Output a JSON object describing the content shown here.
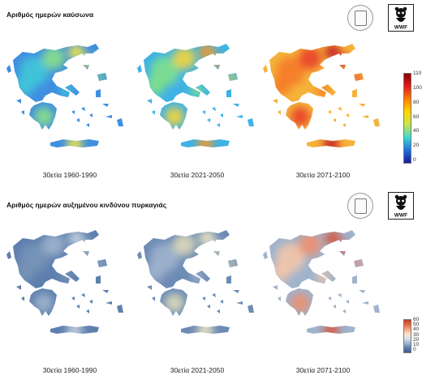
{
  "panels": [
    {
      "id": "heatwave",
      "title": "Αριθμός ημερών καύσωνα",
      "periods": [
        "30ετία 1960-1990",
        "30ετία 2021-2050",
        "30ετία 2071-2100"
      ],
      "colorbar": {
        "ticks": [
          "110",
          "100",
          "80",
          "60",
          "40",
          "20",
          "0"
        ],
        "colors": [
          "#8b0000",
          "#e31a1c",
          "#ff7f00",
          "#ffd700",
          "#c8e64b",
          "#3fd9d0",
          "#1f6fe0",
          "#1a1aa0"
        ]
      },
      "map_palettes": [
        [
          "#3f8fe0",
          "#41c8d8",
          "#8be089",
          "#f2e64a"
        ],
        [
          "#3fb2e6",
          "#7fe08a",
          "#f5d43a",
          "#f59a2a"
        ],
        [
          "#f5b33a",
          "#f57a2a",
          "#e8402a",
          "#c8202a"
        ]
      ]
    },
    {
      "id": "fire",
      "title": "Αριθμός ημερών αυξημένου κινδύνου πυρκαγιάς",
      "periods": [
        "30ετία 1960-1990",
        "30ετία 2021-2050",
        "30ετία 2071-2100"
      ],
      "colorbar": {
        "ticks": [
          "60",
          "50",
          "40",
          "30",
          "20",
          "10",
          "0"
        ],
        "colors": [
          "#c0392b",
          "#e7693f",
          "#f4a582",
          "#fbe3c8",
          "#dbe4ee",
          "#9fb6d0",
          "#5e7fae",
          "#3a5c8c"
        ]
      },
      "map_palettes": [
        [
          "#5e7fae",
          "#7893b8",
          "#9fb3cc",
          "#c7d3df"
        ],
        [
          "#6d8bb5",
          "#9fb3cc",
          "#dcd9b8",
          "#efe7c2"
        ],
        [
          "#9fb3cc",
          "#f4c5a8",
          "#ee8f6e",
          "#d9583e"
        ]
      ]
    }
  ]
}
